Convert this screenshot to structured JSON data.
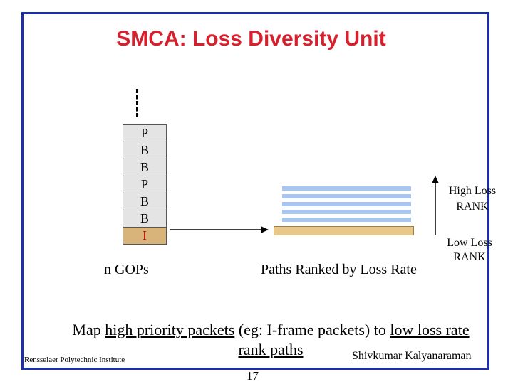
{
  "title": "SMCA: Loss Diversity Unit",
  "gop_stack": [
    "P",
    "B",
    "B",
    "P",
    "B",
    "B",
    "I"
  ],
  "gop_label": "n GOPs",
  "paths_label": "Paths Ranked by Loss Rate",
  "rank": {
    "high_line1": "High Loss",
    "high_line2": "RANK",
    "low_line1": "Low Loss",
    "low_line2": "RANK"
  },
  "caption": {
    "part1": "Map ",
    "link1": "high priority packets",
    "part2": " (eg: I-frame packets) to ",
    "link2": "low loss rate",
    "link3": "rank paths"
  },
  "footer": {
    "institute": "Rensselaer Polytechnic Institute",
    "author": "Shivkumar Kalyanaraman",
    "page": "17"
  },
  "colors": {
    "title": "#d6202e",
    "frame": "#1b2fa6",
    "path": "#a9c6f0",
    "best_path": "#e8c88a",
    "iframe_text": "#c00000"
  }
}
